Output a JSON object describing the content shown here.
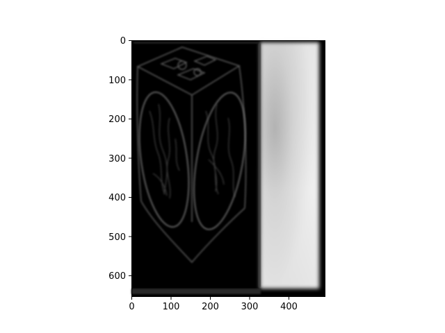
{
  "figure": {
    "image_width": 490,
    "image_height": 655,
    "x_axis": {
      "ticks": [
        0,
        100,
        200,
        300,
        400
      ],
      "labels": [
        "0",
        "100",
        "200",
        "300",
        "400"
      ]
    },
    "y_axis": {
      "ticks": [
        0,
        100,
        200,
        300,
        400,
        500,
        600
      ],
      "labels": [
        "0",
        "100",
        "200",
        "300",
        "400",
        "500",
        "600"
      ]
    },
    "colormap": "gray",
    "content": "edge-filtered grayscale image"
  }
}
